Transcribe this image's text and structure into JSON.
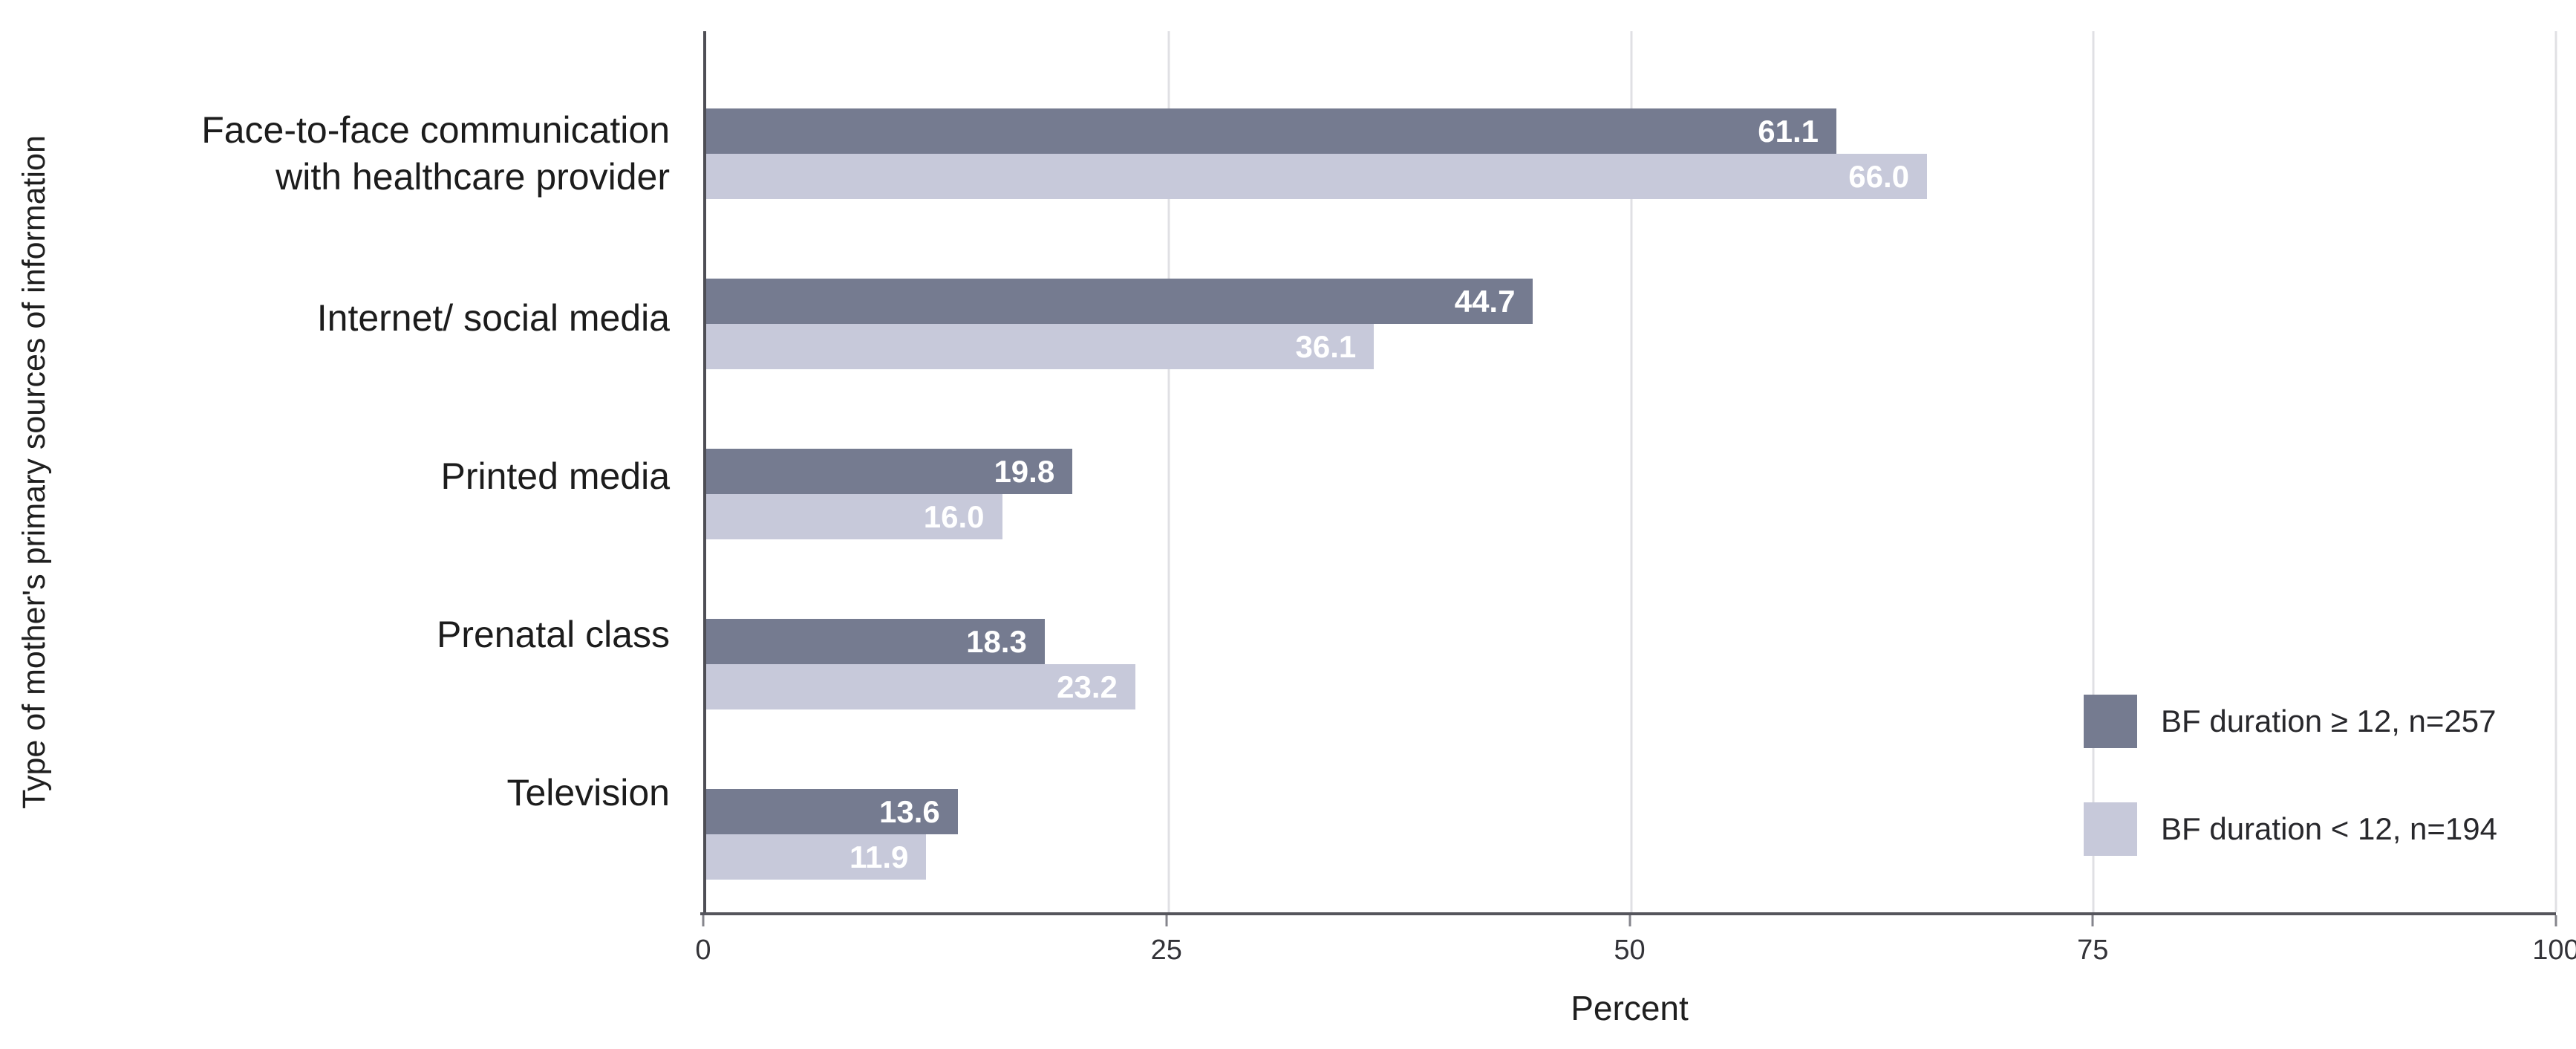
{
  "chart_data": {
    "type": "bar",
    "orientation": "horizontal",
    "title": "",
    "xlabel": "Percent",
    "ylabel": "Type of mother's primary sources of information",
    "xlim": [
      0,
      100
    ],
    "xticks": [
      0,
      25,
      50,
      75,
      100
    ],
    "grid": "vertical",
    "legend_position": "center-right",
    "categories": [
      "Face-to-face communication with healthcare provider",
      "Internet/ social media",
      "Printed media",
      "Prenatal class",
      "Television"
    ],
    "series": [
      {
        "name": "BF duration ≥ 12, n=257",
        "color": "#757b90",
        "values": [
          61.1,
          44.7,
          19.8,
          18.3,
          13.6
        ]
      },
      {
        "name": "BF duration < 12, n=194",
        "color": "#c7c9da",
        "values": [
          66.0,
          36.1,
          16.0,
          23.2,
          11.9
        ]
      }
    ],
    "value_label_color": "#ffffff",
    "colors": {
      "y_axis_line": "#4e4e55",
      "x_axis_line": "#55555c",
      "gridline": "#e0e0e4",
      "tick_label": "#333338",
      "category_label": "#1c1c1c",
      "background": "#ffffff"
    }
  }
}
